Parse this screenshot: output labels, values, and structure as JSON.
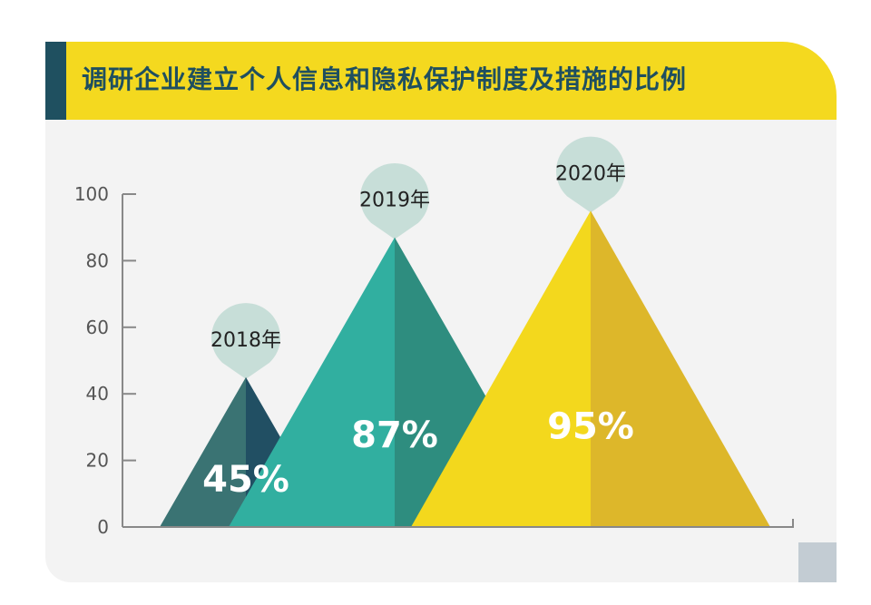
{
  "title": "调研企业建立个人信息和隐私保护制度及措施的比例",
  "colors": {
    "title_bar": "#f4d91f",
    "title_accent": "#1f5060",
    "title_text": "#1f4f5f",
    "panel": "#f3f3f3",
    "axis": "#888888",
    "pin": "#c7ded8"
  },
  "chart_data": {
    "type": "area",
    "shape": "triangle",
    "categories": [
      "2018年",
      "2019年",
      "2020年"
    ],
    "values": [
      45,
      87,
      95
    ],
    "value_labels": [
      "45%",
      "87%",
      "95%"
    ],
    "ylim": [
      0,
      100
    ],
    "yticks": [
      "0",
      "20",
      "40",
      "60",
      "80",
      "100"
    ],
    "xlabel": "",
    "ylabel": "",
    "grid": false,
    "series_colors": [
      {
        "left": "#3a7373",
        "right": "#214f63"
      },
      {
        "left": "#31afa0",
        "right": "#2e8d7f"
      },
      {
        "left": "#f3d81d",
        "right": "#ddb72a"
      }
    ]
  }
}
